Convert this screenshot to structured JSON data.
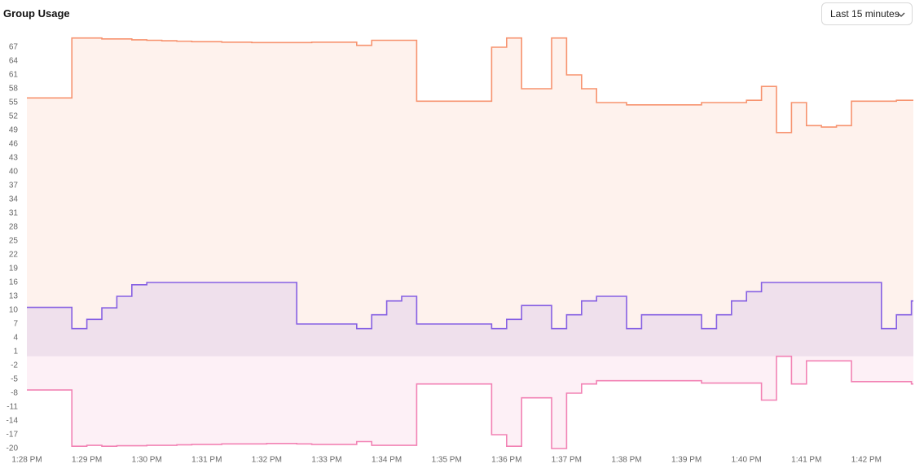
{
  "controls": {
    "time_range": "Last 15 minutes"
  },
  "chart_data": {
    "type": "step-area",
    "title": "Group Usage",
    "categories": [
      "1:28 PM",
      null,
      null,
      null,
      "1:29 PM",
      null,
      null,
      null,
      "1:30 PM",
      null,
      null,
      null,
      "1:31 PM",
      null,
      null,
      null,
      "1:32 PM",
      null,
      null,
      null,
      "1:33 PM",
      null,
      null,
      null,
      "1:34 PM",
      null,
      null,
      null,
      "1:35 PM",
      null,
      null,
      null,
      "1:36 PM",
      null,
      null,
      null,
      "1:37 PM",
      null,
      null,
      null,
      "1:38 PM",
      null,
      null,
      null,
      "1:39 PM",
      null,
      null,
      null,
      "1:40 PM",
      null,
      null,
      null,
      "1:41 PM",
      null,
      null,
      null,
      "1:42 PM",
      null,
      null,
      null
    ],
    "series": [
      {
        "color": "#f7936f",
        "area": true,
        "values": [
          56,
          56,
          56,
          69,
          69,
          68.8,
          68.8,
          68.6,
          68.5,
          68.4,
          68.3,
          68.2,
          68.2,
          68.1,
          68.1,
          68,
          68,
          68,
          68,
          68.1,
          68.1,
          68.1,
          67.4,
          68.5,
          68.5,
          68.5,
          55.3,
          55.3,
          55.3,
          55.3,
          55.3,
          67,
          69,
          58,
          58,
          69,
          61,
          58,
          55,
          55,
          54.5,
          54.5,
          54.5,
          54.5,
          54.5,
          55,
          55,
          55,
          55.5,
          58.5,
          48.5,
          55,
          50,
          49.7,
          50,
          55.3,
          55.3,
          55.3,
          55.5,
          55.5
        ]
      },
      {
        "color": "#8660e3",
        "area": true,
        "values": [
          10.6,
          10.6,
          10.6,
          6,
          8,
          10.5,
          13,
          15.5,
          16,
          16,
          16,
          16,
          16,
          16,
          16,
          16,
          16,
          16,
          7,
          7,
          7,
          7,
          6,
          9,
          12,
          13,
          7,
          7,
          7,
          7,
          7,
          6,
          8,
          11,
          11,
          6,
          9,
          12,
          13,
          13,
          6,
          9,
          9,
          9,
          9,
          6,
          9,
          12,
          14,
          16,
          16,
          16,
          16,
          16,
          16,
          16,
          16,
          6,
          9,
          12
        ]
      },
      {
        "color": "#f282b4",
        "area": true,
        "values": [
          -7.3,
          -7.3,
          -7.3,
          -19.5,
          -19.3,
          -19.5,
          -19.4,
          -19.4,
          -19.3,
          -19.3,
          -19.2,
          -19.1,
          -19.1,
          -19,
          -19,
          -19,
          -18.9,
          -18.9,
          -19,
          -19.1,
          -19.1,
          -19.1,
          -18.5,
          -19.3,
          -19.3,
          -19.3,
          -6,
          -6,
          -6,
          -6,
          -6,
          -17,
          -19.5,
          -9,
          -9,
          -20,
          -8,
          -6,
          -5.3,
          -5.3,
          -5.3,
          -5.3,
          -5.3,
          -5.3,
          -5.3,
          -5.8,
          -5.8,
          -5.8,
          -5.8,
          -9.5,
          0,
          -6,
          -1,
          -1,
          -1,
          -5.5,
          -5.5,
          -5.5,
          -5.5,
          -6
        ]
      }
    ],
    "ylim": [
      -20,
      70
    ],
    "yticks": [
      67,
      64,
      61,
      58,
      55,
      52,
      49,
      46,
      43,
      40,
      37,
      34,
      31,
      28,
      25,
      22,
      19,
      16,
      13,
      10,
      7,
      4,
      1,
      -2,
      -5,
      -8,
      -11,
      -14,
      -17,
      -20
    ],
    "grid": false
  }
}
